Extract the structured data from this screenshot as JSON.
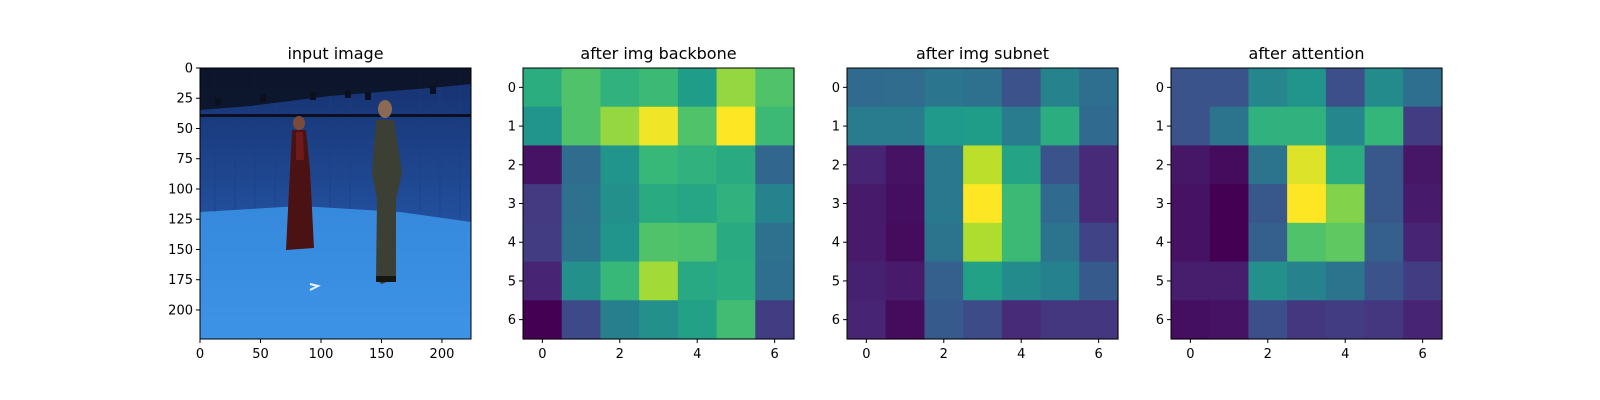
{
  "figure": {
    "background": "#ffffff"
  },
  "chart_data": [
    {
      "type": "image",
      "title": "input image",
      "image_description": "photo of two people standing in a blue motion-capture studio",
      "xlim": [
        0,
        224
      ],
      "ylim": [
        224,
        0
      ],
      "xticks": [
        0,
        50,
        100,
        150,
        200
      ],
      "yticks": [
        0,
        25,
        50,
        75,
        100,
        125,
        150,
        175,
        200
      ],
      "colors": {
        "wall": "#1d3f8f",
        "floor": "#3b8fe0",
        "rig": "#0b1020"
      }
    },
    {
      "type": "heatmap",
      "title": "after img backbone",
      "colormap": "viridis",
      "xticks": [
        0,
        2,
        4,
        6
      ],
      "yticks": [
        0,
        1,
        2,
        3,
        4,
        5,
        6
      ],
      "values": [
        [
          0.62,
          0.72,
          0.64,
          0.68,
          0.55,
          0.84,
          0.72
        ],
        [
          0.52,
          0.72,
          0.84,
          0.98,
          0.72,
          1.0,
          0.68
        ],
        [
          0.05,
          0.35,
          0.52,
          0.67,
          0.64,
          0.61,
          0.33
        ],
        [
          0.17,
          0.37,
          0.5,
          0.61,
          0.59,
          0.64,
          0.45
        ],
        [
          0.18,
          0.38,
          0.52,
          0.72,
          0.71,
          0.61,
          0.37
        ],
        [
          0.1,
          0.5,
          0.67,
          0.86,
          0.6,
          0.62,
          0.36
        ],
        [
          0.0,
          0.22,
          0.43,
          0.5,
          0.57,
          0.69,
          0.18
        ]
      ]
    },
    {
      "type": "heatmap",
      "title": "after img subnet",
      "colormap": "viridis",
      "xticks": [
        0,
        2,
        4,
        6
      ],
      "yticks": [
        0,
        1,
        2,
        3,
        4,
        5,
        6
      ],
      "values": [
        [
          0.34,
          0.35,
          0.39,
          0.37,
          0.25,
          0.45,
          0.36
        ],
        [
          0.42,
          0.42,
          0.54,
          0.55,
          0.42,
          0.62,
          0.34
        ],
        [
          0.1,
          0.05,
          0.4,
          0.9,
          0.58,
          0.26,
          0.12
        ],
        [
          0.07,
          0.04,
          0.4,
          1.0,
          0.68,
          0.34,
          0.12
        ],
        [
          0.07,
          0.03,
          0.38,
          0.88,
          0.68,
          0.38,
          0.2
        ],
        [
          0.09,
          0.07,
          0.3,
          0.57,
          0.48,
          0.44,
          0.28
        ],
        [
          0.1,
          0.03,
          0.28,
          0.23,
          0.12,
          0.16,
          0.16
        ]
      ]
    },
    {
      "type": "heatmap",
      "title": "after attention",
      "colormap": "viridis",
      "xticks": [
        0,
        2,
        4,
        6
      ],
      "yticks": [
        0,
        1,
        2,
        3,
        4,
        5,
        6
      ],
      "values": [
        [
          0.26,
          0.26,
          0.46,
          0.52,
          0.24,
          0.48,
          0.36
        ],
        [
          0.26,
          0.38,
          0.64,
          0.64,
          0.46,
          0.66,
          0.18
        ],
        [
          0.06,
          0.03,
          0.38,
          0.95,
          0.62,
          0.27,
          0.06
        ],
        [
          0.05,
          0.0,
          0.27,
          1.0,
          0.81,
          0.27,
          0.07
        ],
        [
          0.05,
          0.0,
          0.3,
          0.72,
          0.75,
          0.3,
          0.1
        ],
        [
          0.08,
          0.08,
          0.5,
          0.45,
          0.38,
          0.26,
          0.18
        ],
        [
          0.04,
          0.05,
          0.24,
          0.16,
          0.18,
          0.16,
          0.1
        ]
      ]
    }
  ]
}
